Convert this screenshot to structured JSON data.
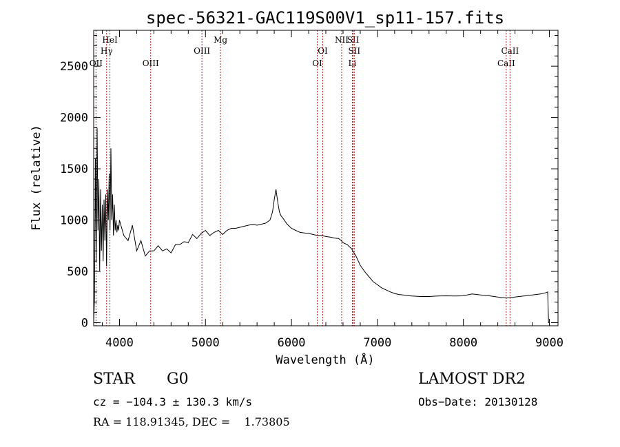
{
  "chart_data": {
    "type": "line",
    "title": "spec-56321-GAC119S00V1_sp11-157.fits",
    "xlabel": "Wavelength (Å)",
    "ylabel": "Flux (relative)",
    "xlim": [
      3700,
      9100
    ],
    "ylim": [
      -30,
      2850
    ],
    "x_ticks": [
      4000,
      5000,
      6000,
      7000,
      8000,
      9000
    ],
    "y_ticks": [
      0,
      500,
      1000,
      1500,
      2000,
      2500
    ],
    "series": [
      {
        "x": [
          3700,
          3710,
          3720,
          3730,
          3740,
          3750,
          3760,
          3770,
          3780,
          3790,
          3800,
          3810,
          3820,
          3830,
          3840,
          3850,
          3860,
          3870,
          3880,
          3890,
          3900,
          3910,
          3920,
          3930,
          3940,
          3950,
          3960,
          3970,
          3980,
          3990,
          4000,
          4050,
          4100,
          4150,
          4200,
          4250,
          4300,
          4350,
          4400,
          4450,
          4500,
          4550,
          4600,
          4650,
          4700,
          4750,
          4800,
          4850,
          4900,
          4950,
          5000,
          5050,
          5100,
          5150,
          5200,
          5250,
          5300,
          5350,
          5400,
          5450,
          5500,
          5550,
          5600,
          5650,
          5700,
          5750,
          5780,
          5800,
          5820,
          5840,
          5860,
          5880,
          5900,
          5950,
          6000,
          6050,
          6100,
          6150,
          6200,
          6250,
          6300,
          6350,
          6400,
          6450,
          6500,
          6550,
          6580,
          6600,
          6650,
          6700,
          6750,
          6800,
          6850,
          6900,
          6950,
          7000,
          7050,
          7100,
          7150,
          7200,
          7250,
          7300,
          7350,
          7400,
          7450,
          7500,
          7600,
          7700,
          7800,
          7900,
          8000,
          8100,
          8200,
          8300,
          8400,
          8500,
          8600,
          8700,
          8800,
          8900,
          8950,
          8980,
          8990,
          9000
        ],
        "y": [
          0,
          250,
          1600,
          600,
          1900,
          900,
          1400,
          500,
          1300,
          700,
          1150,
          600,
          1200,
          800,
          1250,
          550,
          1300,
          1000,
          1450,
          900,
          1700,
          1000,
          1250,
          850,
          1150,
          900,
          1000,
          880,
          950,
          900,
          1000,
          850,
          800,
          950,
          700,
          800,
          650,
          700,
          700,
          750,
          700,
          720,
          680,
          760,
          760,
          790,
          780,
          860,
          820,
          870,
          900,
          850,
          880,
          900,
          860,
          900,
          920,
          920,
          930,
          940,
          950,
          960,
          950,
          960,
          970,
          1000,
          1080,
          1200,
          1300,
          1180,
          1080,
          1040,
          1020,
          960,
          920,
          900,
          880,
          875,
          870,
          860,
          850,
          850,
          840,
          835,
          825,
          820,
          800,
          780,
          760,
          720,
          650,
          560,
          500,
          450,
          400,
          370,
          340,
          320,
          300,
          285,
          275,
          270,
          265,
          260,
          258,
          255,
          255,
          260,
          262,
          260,
          262,
          280,
          270,
          262,
          250,
          240,
          250,
          260,
          270,
          280,
          290,
          300,
          0,
          0
        ]
      }
    ],
    "line_markers": [
      {
        "label": "OII",
        "x": 3727,
        "row": 3
      },
      {
        "label": "Hγ",
        "x": 3850,
        "row": 2
      },
      {
        "label": "HeI",
        "x": 3889,
        "row": 1
      },
      {
        "label": "OIII",
        "x": 4363,
        "row": 3
      },
      {
        "label": "OIII",
        "x": 4959,
        "row": 2
      },
      {
        "label": "Mg",
        "x": 5175,
        "row": 1
      },
      {
        "label": "OI",
        "x": 6300,
        "row": 3
      },
      {
        "label": "OI",
        "x": 6364,
        "row": 2
      },
      {
        "label": "NII",
        "x": 6584,
        "row": 1
      },
      {
        "label": "SII",
        "x": 6717,
        "row": 1
      },
      {
        "label": "SII",
        "x": 6731,
        "row": 2
      },
      {
        "label": "Li",
        "x": 6708,
        "row": 3
      },
      {
        "label": "CaII",
        "x": 8498,
        "row": 3
      },
      {
        "label": "CaII",
        "x": 8542,
        "row": 2
      }
    ]
  },
  "info": {
    "object_class": "STAR",
    "subclass": "G0",
    "survey": "LAMOST DR2",
    "cz": "cz = −104.3 ± 130.3 km/s",
    "obs_date": "Obs−Date: 20130128",
    "coords": "RA = 118.91345, DEC =    1.73805"
  }
}
